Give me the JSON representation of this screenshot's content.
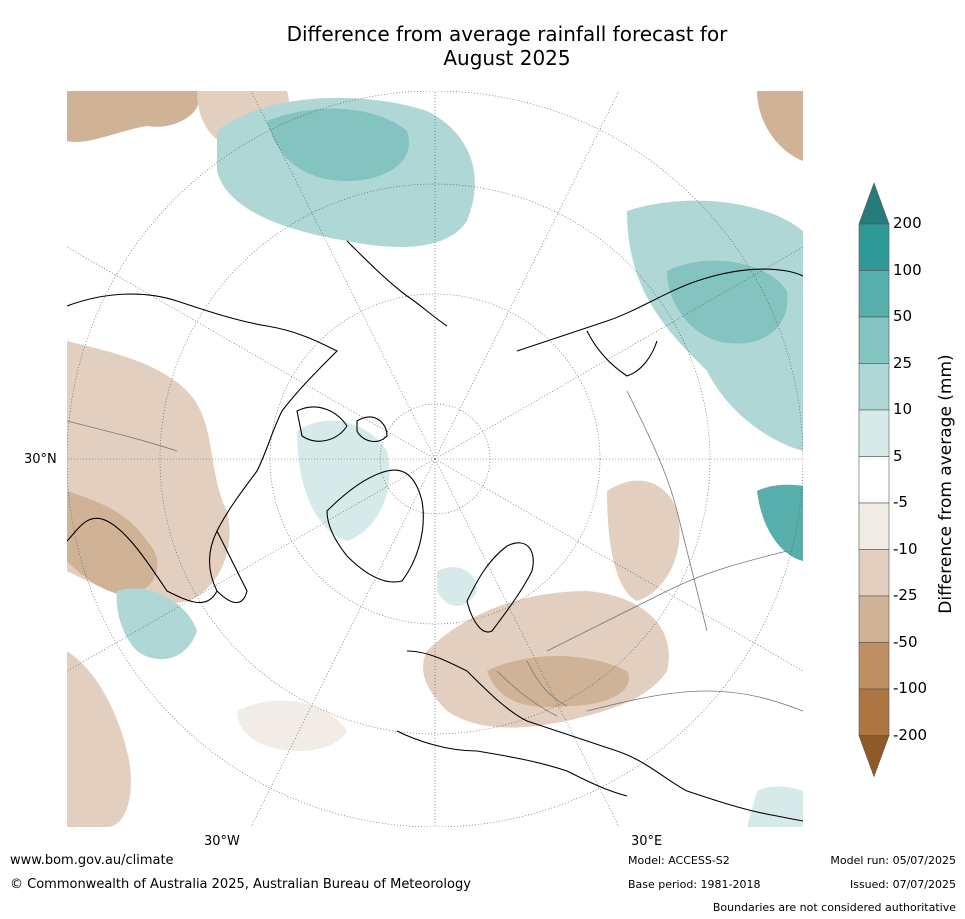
{
  "title": {
    "line1": "Difference from average rainfall forecast for",
    "line2": "August 2025"
  },
  "map": {
    "projection": "north-polar-stereographic",
    "graticule_labels": {
      "lat_30n": "30°N",
      "lon_30w": "30°W",
      "lon_30e": "30°E"
    }
  },
  "colorbar": {
    "title": "Difference from average (mm)",
    "tick_labels": [
      "200",
      "100",
      "50",
      "25",
      "10",
      "5",
      "-5",
      "-10",
      "-25",
      "-50",
      "-100",
      "-200"
    ],
    "colors": {
      "above_200": "#267c7a",
      "100_200": "#2e9a97",
      "50_100": "#58aeab",
      "25_50": "#83c3c0",
      "10_25": "#aed7d5",
      "5_10": "#d6ebe9",
      "neutral": "#ffffff",
      "minus10_minus5": "#f2ece6",
      "minus25_minus10": "#e3cfbf",
      "minus50_minus25": "#d0b296",
      "minus100_minus50": "#bf9064",
      "minus200_minus100": "#ad7542",
      "below_minus200": "#8f5a27"
    }
  },
  "footer": {
    "website": "www.bom.gov.au/climate",
    "copyright": "© Commonwealth of Australia 2025, Australian Bureau of Meteorology",
    "model": "Model: ACCESS-S2",
    "base_period": "Base period: 1981-2018",
    "model_run": "Model run: 05/07/2025",
    "issued": "Issued: 07/07/2025",
    "disclaimer": "Boundaries are not considered authoritative"
  }
}
